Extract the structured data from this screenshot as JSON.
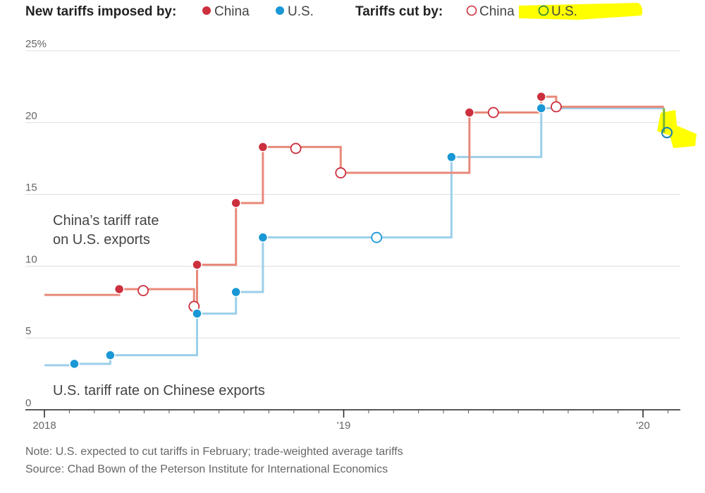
{
  "legend": {
    "imposed_title": "New tariffs imposed by:",
    "cut_title": "Tariffs cut by:",
    "imposed_china": "China",
    "imposed_us": "U.S.",
    "cut_china": "China",
    "cut_us": "U.S."
  },
  "colors": {
    "china_line": "#e8897a",
    "us_line": "#9ccfea",
    "china_dot": "#cc2f3d",
    "us_dot": "#1a97d5",
    "highlight": "#ffff00",
    "green": "#7ab72e",
    "grid": "#dddddd"
  },
  "chart_data": {
    "type": "line",
    "step": true,
    "xlim": [
      2018.0,
      2020.12
    ],
    "ylim": [
      0,
      25
    ],
    "y_ticks": [
      {
        "value": 25,
        "label": "25%"
      },
      {
        "value": 20,
        "label": "20"
      },
      {
        "value": 15,
        "label": "15"
      },
      {
        "value": 10,
        "label": "10"
      },
      {
        "value": 5,
        "label": "5"
      },
      {
        "value": 0,
        "label": "0"
      }
    ],
    "x_ticks": [
      {
        "value": 2018.0,
        "label": "2018"
      },
      {
        "value": 2019.0,
        "label": "'19"
      },
      {
        "value": 2020.0,
        "label": "'20"
      }
    ],
    "annotations": {
      "china_label": [
        "China’s tariff rate",
        "on U.S. exports"
      ],
      "us_label": "U.S. tariff rate on Chinese exports"
    },
    "series": [
      {
        "name": "China",
        "steps": [
          [
            2018.0,
            8.0
          ],
          [
            2018.25,
            8.4
          ],
          [
            2018.5,
            7.2
          ],
          [
            2018.51,
            10.1
          ],
          [
            2018.64,
            14.4
          ],
          [
            2018.73,
            18.3
          ],
          [
            2018.99,
            16.5
          ],
          [
            2019.42,
            20.7
          ],
          [
            2019.66,
            21.8
          ],
          [
            2019.71,
            21.1
          ],
          [
            2020.07,
            21.1
          ]
        ],
        "events": [
          {
            "x": 2018.25,
            "y": 8.4,
            "kind": "imposed"
          },
          {
            "x": 2018.33,
            "y": 8.3,
            "kind": "cut"
          },
          {
            "x": 2018.5,
            "y": 7.2,
            "kind": "cut"
          },
          {
            "x": 2018.51,
            "y": 10.1,
            "kind": "imposed"
          },
          {
            "x": 2018.64,
            "y": 14.4,
            "kind": "imposed"
          },
          {
            "x": 2018.73,
            "y": 18.3,
            "kind": "imposed"
          },
          {
            "x": 2018.84,
            "y": 18.2,
            "kind": "cut"
          },
          {
            "x": 2018.99,
            "y": 16.5,
            "kind": "cut"
          },
          {
            "x": 2019.42,
            "y": 20.7,
            "kind": "imposed"
          },
          {
            "x": 2019.5,
            "y": 20.7,
            "kind": "cut"
          },
          {
            "x": 2019.66,
            "y": 21.8,
            "kind": "imposed"
          },
          {
            "x": 2019.71,
            "y": 21.1,
            "kind": "cut"
          }
        ]
      },
      {
        "name": "U.S.",
        "steps": [
          [
            2018.0,
            3.1
          ],
          [
            2018.1,
            3.2
          ],
          [
            2018.22,
            3.8
          ],
          [
            2018.51,
            6.7
          ],
          [
            2018.64,
            8.2
          ],
          [
            2018.73,
            12.0
          ],
          [
            2019.36,
            17.6
          ],
          [
            2019.66,
            21.0
          ],
          [
            2020.07,
            19.3
          ]
        ],
        "events": [
          {
            "x": 2018.1,
            "y": 3.2,
            "kind": "imposed"
          },
          {
            "x": 2018.22,
            "y": 3.8,
            "kind": "imposed"
          },
          {
            "x": 2018.51,
            "y": 6.7,
            "kind": "imposed"
          },
          {
            "x": 2018.64,
            "y": 8.2,
            "kind": "imposed"
          },
          {
            "x": 2018.73,
            "y": 12.0,
            "kind": "imposed"
          },
          {
            "x": 2019.11,
            "y": 12.0,
            "kind": "cut"
          },
          {
            "x": 2019.36,
            "y": 17.6,
            "kind": "imposed"
          },
          {
            "x": 2019.66,
            "y": 21.0,
            "kind": "imposed"
          },
          {
            "x": 2020.08,
            "y": 19.3,
            "kind": "cut_expected"
          }
        ]
      }
    ]
  },
  "footer": {
    "note": "Note: U.S. expected to cut tariffs in February; trade-weighted average tariffs",
    "source": "Source: Chad Bown of the Peterson Institute for International Economics"
  }
}
